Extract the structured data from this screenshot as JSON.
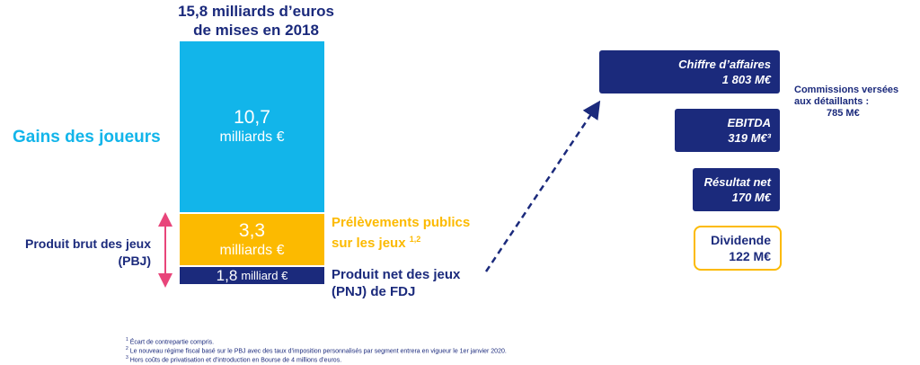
{
  "chart_data": {
    "type": "bar",
    "title": "15,8 milliards d’euros de mises en 2018",
    "title_line1": "15,8 milliards d’euros",
    "title_line2": "de mises en 2018",
    "stacked": true,
    "total_value": 15.8,
    "series": [
      {
        "name": "Gains des joueurs",
        "value": 10.7,
        "value_label": "10,7",
        "unit_label": "milliards €",
        "color": "#12b5ea"
      },
      {
        "name": "Prélèvements publics sur les jeux",
        "value": 3.3,
        "value_label": "3,3",
        "unit_label": "milliards €",
        "color": "#fcba00"
      },
      {
        "name": "Produit net des jeux (PNJ) de FDJ",
        "value": 1.8,
        "value_label": "1,8",
        "unit_label": "milliard €",
        "color": "#1b2a7c"
      }
    ],
    "labels": {
      "gains": "Gains des joueurs",
      "pbj_line1": "Produit brut des jeux",
      "pbj_line2": "(PBJ)",
      "prel_line1": "Prélèvements publics",
      "prel_line2": "sur les jeux",
      "prel_sup": "1,2",
      "pnj_line1": "Produit net des jeux",
      "pnj_line2": "(PNJ) de FDJ"
    }
  },
  "kpis": {
    "ca_label": "Chiffre d’affaires",
    "ca_value": "1 803 M€",
    "ebitda_label": "EBITDA",
    "ebitda_value": "319 M€³",
    "resultat_label": "Résultat net",
    "resultat_value": "170 M€",
    "dividende_label": "Dividende",
    "dividende_value": "122 M€"
  },
  "commissions": {
    "line1": "Commissions versées",
    "line2": "aux détaillants :",
    "line3": "785 M€"
  },
  "colors": {
    "navy": "#1b2a7c",
    "cyan": "#12b5ea",
    "yellow": "#fcba00",
    "pink": "#e8457a"
  },
  "footnotes": [
    {
      "sup": "1",
      "text": "Écart de contrepartie compris."
    },
    {
      "sup": "2",
      "text": "Le nouveau régime fiscal basé sur le PBJ avec des taux d’imposition personnalisés par segment entrera en vigueur le 1er janvier 2020."
    },
    {
      "sup": "3",
      "text": "Hors coûts de privatisation et d’introduction en Bourse de 4 millions d’euros."
    }
  ]
}
